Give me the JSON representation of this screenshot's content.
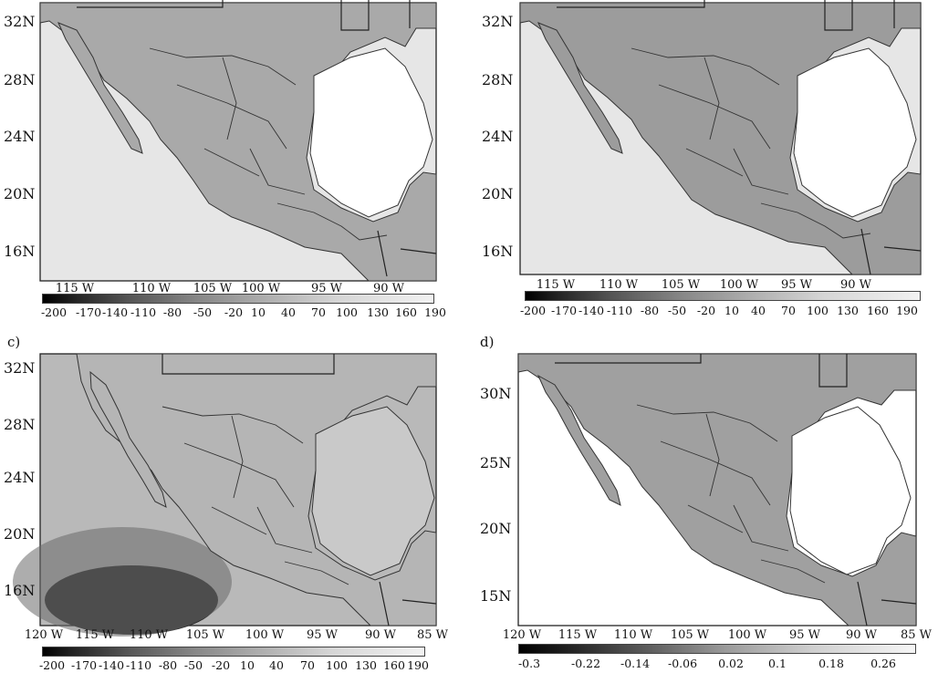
{
  "panels": [
    {
      "id": "a",
      "label": "",
      "lat_labels": [
        "32N",
        "28N",
        "24N",
        "20N",
        "16N"
      ],
      "lon_labels": [
        "115 W",
        "110 W",
        "105 W",
        "100 W",
        "95 W",
        "90 W"
      ],
      "colorbar_labels": [
        "-200",
        "-170",
        "-140",
        "-110",
        "-80",
        "-50",
        "-20",
        "10",
        "40",
        "70",
        "100",
        "130",
        "160",
        "190"
      ],
      "shading": "#a9a9a9"
    },
    {
      "id": "b",
      "label": "",
      "lat_labels": [
        "32N",
        "28N",
        "24N",
        "20N",
        "16N"
      ],
      "lon_labels": [
        "115 W",
        "110 W",
        "105 W",
        "100 W",
        "95 W",
        "90 W"
      ],
      "colorbar_labels": [
        "-200",
        "-170",
        "-140",
        "-110",
        "-80",
        "-50",
        "-20",
        "10",
        "40",
        "70",
        "100",
        "130",
        "160",
        "190"
      ],
      "shading": "#9c9c9c"
    },
    {
      "id": "c",
      "label": "c)",
      "lat_labels": [
        "32N",
        "28N",
        "24N",
        "20N",
        "16N"
      ],
      "lon_labels": [
        "120 W",
        "115 W",
        "110 W",
        "105 W",
        "100 W",
        "95 W",
        "90 W",
        "85 W"
      ],
      "colorbar_labels": [
        "-200",
        "-170",
        "-140",
        "-110",
        "-80",
        "-50",
        "-20",
        "10",
        "40",
        "70",
        "100",
        "130",
        "160",
        "190"
      ],
      "shading": "#b5b5b5"
    },
    {
      "id": "d",
      "label": "d)",
      "lat_labels": [
        "30N",
        "25N",
        "20N",
        "15N"
      ],
      "lon_labels": [
        "120 W",
        "115 W",
        "110 W",
        "105 W",
        "100 W",
        "95 W",
        "90 W",
        "85 W"
      ],
      "colorbar_labels": [
        "-0.3",
        "-0.22",
        "-0.14",
        "-0.06",
        "0.02",
        "0.1",
        "0.18",
        "0.26"
      ],
      "shading": "#a0a0a0"
    }
  ]
}
